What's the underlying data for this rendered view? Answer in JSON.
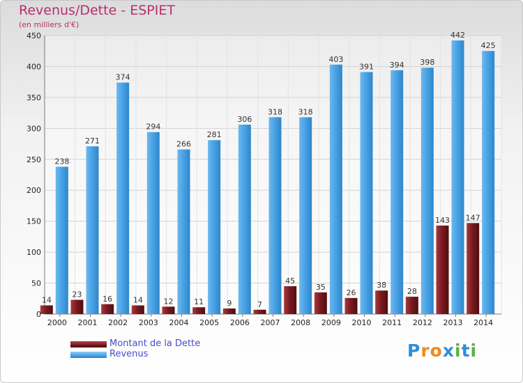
{
  "title": "Revenus/Dette - ESPIET",
  "subtitle": "(en milliers d'€)",
  "legend": {
    "debt_label": "Montant de la Dette",
    "revenue_label": "Revenus"
  },
  "logo": {
    "text": "Proxiti",
    "letters": [
      "P",
      "r",
      "o",
      "x",
      "i",
      "t",
      "i"
    ],
    "colors": [
      "#2f8fd6",
      "#f08a1d",
      "#f08a1d",
      "#2f8fd6",
      "#5bb240",
      "#2f8fd6",
      "#5bb240"
    ]
  },
  "colors": {
    "debt": "#7b1a1f",
    "revenue": "#4aa3e6",
    "title": "#b5306a",
    "legend_text": "#4a4acb"
  },
  "chart_data": {
    "type": "bar",
    "categories": [
      "2000",
      "2001",
      "2002",
      "2003",
      "2004",
      "2005",
      "2006",
      "2007",
      "2008",
      "2009",
      "2010",
      "2011",
      "2012",
      "2013",
      "2014"
    ],
    "series": [
      {
        "name": "Montant de la Dette",
        "values": [
          14,
          23,
          16,
          14,
          12,
          11,
          9,
          7,
          45,
          35,
          26,
          38,
          28,
          143,
          147
        ]
      },
      {
        "name": "Revenus",
        "values": [
          238,
          271,
          374,
          294,
          266,
          281,
          306,
          318,
          318,
          403,
          391,
          394,
          398,
          442,
          425
        ]
      }
    ],
    "ylim": [
      0,
      450
    ],
    "yticks": [
      0,
      50,
      100,
      150,
      200,
      250,
      300,
      350,
      400,
      450
    ],
    "grid": true
  }
}
